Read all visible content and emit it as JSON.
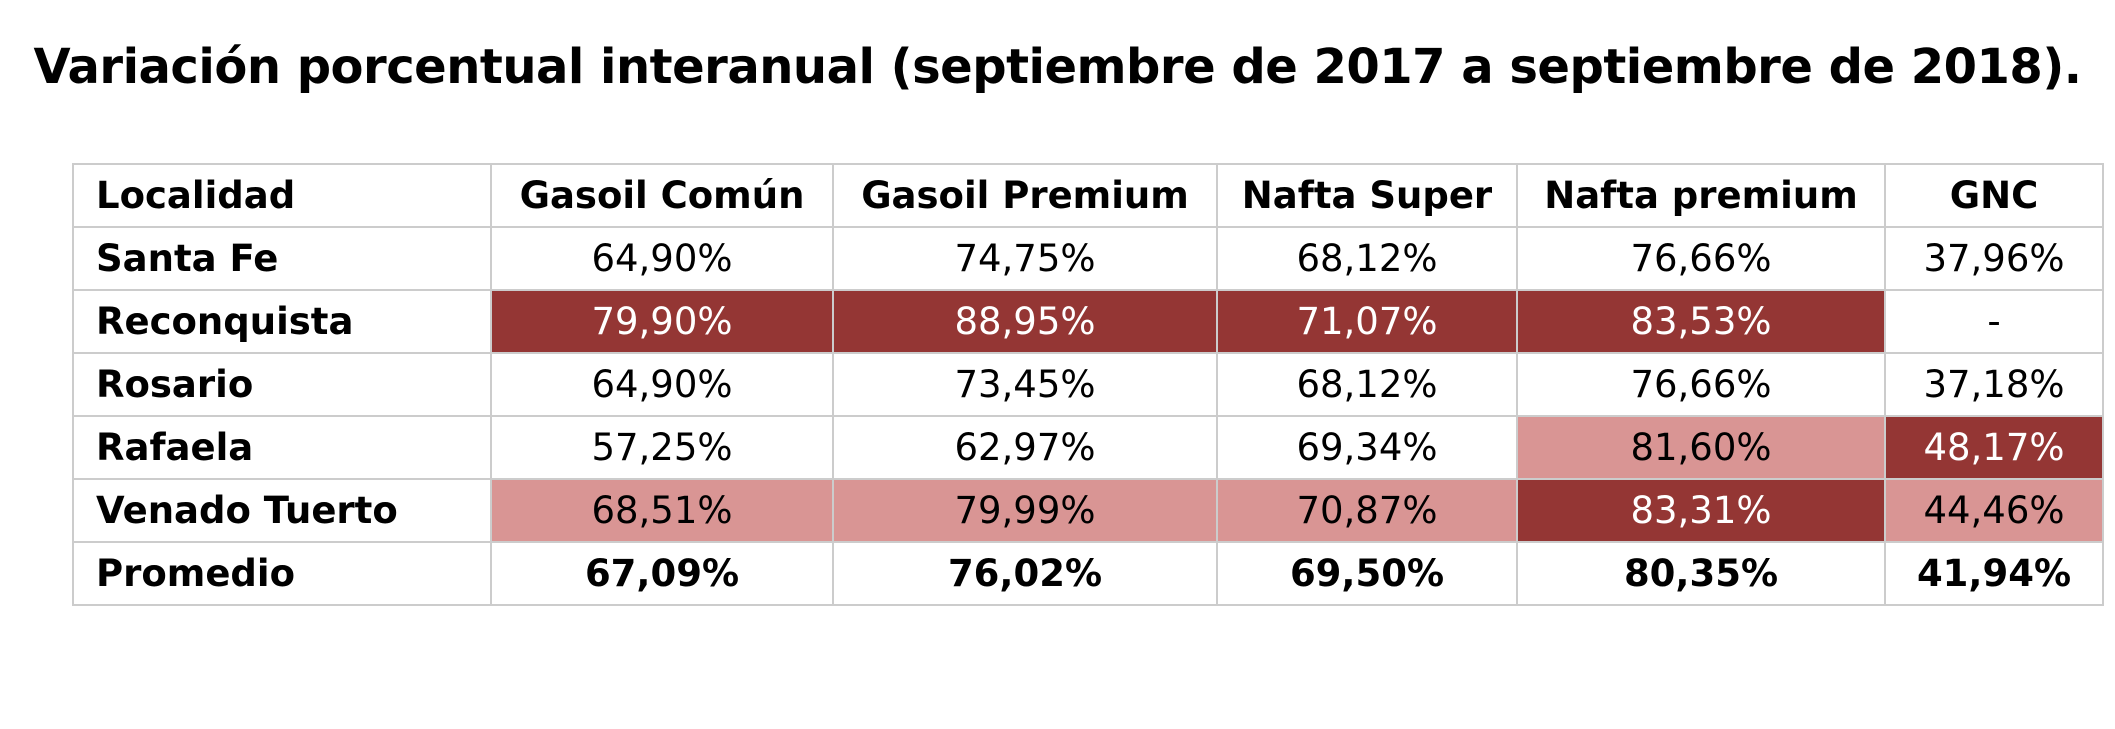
{
  "title": "Variación porcentual interanual (septiembre de 2017 a septiembre de 2018).",
  "colors": {
    "dark_highlight": "#943634",
    "light_highlight": "#d99594",
    "grid_line": "#cccccc"
  },
  "chart_data": {
    "type": "table",
    "title": "Variación porcentual interanual (septiembre de 2017 a septiembre de 2018).",
    "columns": [
      "Localidad",
      "Gasoil Común",
      "Gasoil Premium",
      "Nafta Super",
      "Nafta premium",
      "GNC"
    ],
    "rows": [
      {
        "name": "Santa Fe",
        "cells": [
          {
            "text": "64,90%",
            "style": "none"
          },
          {
            "text": "74,75%",
            "style": "none"
          },
          {
            "text": "68,12%",
            "style": "none"
          },
          {
            "text": "76,66%",
            "style": "none"
          },
          {
            "text": "37,96%",
            "style": "none"
          }
        ]
      },
      {
        "name": "Reconquista",
        "cells": [
          {
            "text": "79,90%",
            "style": "dark"
          },
          {
            "text": "88,95%",
            "style": "dark"
          },
          {
            "text": "71,07%",
            "style": "dark"
          },
          {
            "text": "83,53%",
            "style": "dark"
          },
          {
            "text": "-",
            "style": "none"
          }
        ]
      },
      {
        "name": "Rosario",
        "cells": [
          {
            "text": "64,90%",
            "style": "none"
          },
          {
            "text": "73,45%",
            "style": "none"
          },
          {
            "text": "68,12%",
            "style": "none"
          },
          {
            "text": "76,66%",
            "style": "none"
          },
          {
            "text": "37,18%",
            "style": "none"
          }
        ]
      },
      {
        "name": "Rafaela",
        "cells": [
          {
            "text": "57,25%",
            "style": "none"
          },
          {
            "text": "62,97%",
            "style": "none"
          },
          {
            "text": "69,34%",
            "style": "none"
          },
          {
            "text": "81,60%",
            "style": "light"
          },
          {
            "text": "48,17%",
            "style": "dark"
          }
        ]
      },
      {
        "name": "Venado Tuerto",
        "cells": [
          {
            "text": "68,51%",
            "style": "light"
          },
          {
            "text": "79,99%",
            "style": "light"
          },
          {
            "text": "70,87%",
            "style": "light"
          },
          {
            "text": "83,31%",
            "style": "dark"
          },
          {
            "text": "44,46%",
            "style": "light"
          }
        ]
      },
      {
        "name": "Promedio",
        "cells": [
          {
            "text": "67,09%",
            "style": "none"
          },
          {
            "text": "76,02%",
            "style": "none"
          },
          {
            "text": "69,50%",
            "style": "none"
          },
          {
            "text": "80,35%",
            "style": "none"
          },
          {
            "text": "41,94%",
            "style": "none"
          }
        ]
      }
    ]
  }
}
